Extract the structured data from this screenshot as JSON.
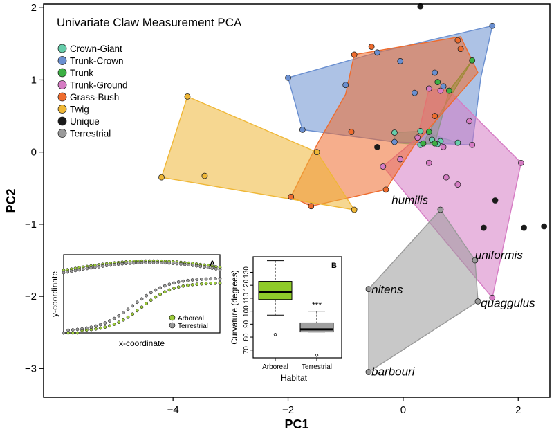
{
  "chart_data": {
    "type": "scatter",
    "title": "Univariate Claw Measurement PCA",
    "xlabel": "PC1",
    "ylabel": "PC2",
    "xlim": [
      -6.25,
      2.55
    ],
    "ylim": [
      -3.4,
      2.05
    ],
    "x_ticks": [
      -4,
      -2,
      0,
      2
    ],
    "y_ticks": [
      -3,
      -2,
      -1,
      0,
      1,
      2
    ],
    "legend_position": "top-left",
    "grid": false,
    "series": [
      {
        "name": "Crown-Giant",
        "color": "#66CDAA",
        "points": [
          [
            -0.15,
            0.27
          ],
          [
            0.95,
            0.13
          ],
          [
            0.3,
            0.1
          ],
          [
            0.5,
            0.17
          ],
          [
            0.65,
            0.15
          ],
          [
            0.3,
            0.29
          ],
          [
            0.6,
            0.11
          ]
        ],
        "hull": [
          [
            -0.15,
            0.27
          ],
          [
            0.3,
            0.29
          ],
          [
            0.95,
            0.13
          ],
          [
            0.3,
            0.1
          ],
          [
            -0.15,
            0.13
          ]
        ]
      },
      {
        "name": "Trunk-Crown",
        "color": "#6A8FD0",
        "points": [
          [
            -2.0,
            1.03
          ],
          [
            -1.75,
            0.31
          ],
          [
            -1.0,
            0.93
          ],
          [
            -0.45,
            1.38
          ],
          [
            -0.05,
            1.26
          ],
          [
            1.55,
            1.75
          ],
          [
            0.55,
            1.1
          ],
          [
            -0.15,
            0.14
          ],
          [
            0.7,
            0.91
          ],
          [
            0.2,
            0.82
          ]
        ],
        "hull": [
          [
            -2.0,
            1.03
          ],
          [
            -0.45,
            1.38
          ],
          [
            1.55,
            1.75
          ],
          [
            1.35,
            1.03
          ],
          [
            1.2,
            0.1
          ],
          [
            -0.15,
            0.14
          ],
          [
            -1.75,
            0.31
          ]
        ]
      },
      {
        "name": "Trunk",
        "color": "#3CB043",
        "points": [
          [
            1.2,
            1.27
          ],
          [
            0.6,
            0.97
          ],
          [
            0.8,
            0.85
          ],
          [
            0.45,
            0.28
          ],
          [
            0.35,
            0.12
          ],
          [
            0.55,
            0.12
          ]
        ],
        "hull": [
          [
            1.2,
            1.27
          ],
          [
            0.8,
            0.85
          ],
          [
            0.55,
            0.12
          ],
          [
            0.35,
            0.12
          ],
          [
            0.45,
            0.28
          ]
        ]
      },
      {
        "name": "Trunk-Ground",
        "color": "#D67CC4",
        "points": [
          [
            0.45,
            0.88
          ],
          [
            0.65,
            0.85
          ],
          [
            1.15,
            0.43
          ],
          [
            1.2,
            0.1
          ],
          [
            0.7,
            0.07
          ],
          [
            0.25,
            0.2
          ],
          [
            -0.35,
            -0.2
          ],
          [
            -0.05,
            -0.1
          ],
          [
            0.45,
            -0.15
          ],
          [
            0.75,
            -0.35
          ],
          [
            0.95,
            -0.45
          ],
          [
            2.05,
            -0.15
          ],
          [
            1.55,
            -2.02
          ]
        ],
        "hull": [
          [
            0.45,
            0.88
          ],
          [
            0.8,
            0.85
          ],
          [
            2.05,
            -0.15
          ],
          [
            1.55,
            -2.02
          ],
          [
            -0.35,
            -0.2
          ],
          [
            0.25,
            0.2
          ]
        ]
      },
      {
        "name": "Grass-Bush",
        "color": "#EE6C2E",
        "points": [
          [
            -0.85,
            1.35
          ],
          [
            0.95,
            1.55
          ],
          [
            1.0,
            1.43
          ],
          [
            -0.55,
            1.46
          ],
          [
            0.55,
            0.5
          ],
          [
            -0.9,
            0.28
          ],
          [
            -1.95,
            -0.62
          ],
          [
            -1.6,
            -0.75
          ],
          [
            -0.3,
            -0.52
          ]
        ],
        "hull": [
          [
            -0.85,
            1.35
          ],
          [
            1.0,
            1.6
          ],
          [
            1.3,
            1.1
          ],
          [
            0.2,
            0.1
          ],
          [
            -0.3,
            -0.52
          ],
          [
            -1.6,
            -0.75
          ],
          [
            -1.95,
            -0.62
          ],
          [
            -1.5,
            0.1
          ],
          [
            -1.0,
            0.8
          ]
        ]
      },
      {
        "name": "Twig",
        "color": "#EFB736",
        "points": [
          [
            -3.75,
            0.77
          ],
          [
            -4.2,
            -0.35
          ],
          [
            -3.45,
            -0.33
          ],
          [
            -1.5,
            0.0
          ],
          [
            -0.85,
            -0.8
          ]
        ],
        "hull": [
          [
            -3.75,
            0.77
          ],
          [
            -1.5,
            0.0
          ],
          [
            -0.85,
            -0.8
          ],
          [
            -4.2,
            -0.35
          ]
        ]
      },
      {
        "name": "Unique",
        "color": "#1A1A1A",
        "points": [
          [
            0.3,
            2.02
          ],
          [
            -0.45,
            0.07
          ],
          [
            1.6,
            -0.67
          ],
          [
            1.4,
            -1.05
          ],
          [
            2.1,
            -1.05
          ],
          [
            2.45,
            -1.03
          ]
        ],
        "hull": null
      },
      {
        "name": "Terrestrial",
        "color": "#9A9A9A",
        "points": [
          [
            0.65,
            -0.8
          ],
          [
            -0.6,
            -1.9
          ],
          [
            1.25,
            -1.5
          ],
          [
            1.3,
            -2.07
          ],
          [
            -0.6,
            -3.05
          ]
        ],
        "hull": [
          [
            0.65,
            -0.8
          ],
          [
            1.25,
            -1.5
          ],
          [
            1.3,
            -2.07
          ],
          [
            -0.6,
            -3.05
          ],
          [
            -0.6,
            -1.9
          ]
        ]
      }
    ],
    "annotations": [
      {
        "text": "humilis",
        "x": -0.2,
        "y": -0.72
      },
      {
        "text": "uniformis",
        "x": 1.25,
        "y": -1.48
      },
      {
        "text": "nitens",
        "x": -0.55,
        "y": -1.96
      },
      {
        "text": "quaggulus",
        "x": 1.35,
        "y": -2.15
      },
      {
        "text": "barbouri",
        "x": -0.55,
        "y": -3.1
      }
    ],
    "insets": [
      {
        "label": "A",
        "type": "scatter",
        "xlabel": "x-coordinate",
        "ylabel": "y-coordinate",
        "legend": [
          "Arboreal",
          "Terrestrial"
        ],
        "legend_colors": [
          "#9CCB3B",
          "#9A9A9A"
        ]
      },
      {
        "label": "B",
        "type": "boxplot",
        "xlabel": "Habitat",
        "ylabel": "Curvature (degrees)",
        "categories": [
          "Arboreal",
          "Terrestrial"
        ],
        "y_ticks": [
          70,
          80,
          90,
          100,
          110,
          120,
          130
        ],
        "ylim": [
          64,
          142
        ],
        "boxes": [
          {
            "name": "Arboreal",
            "color": "#8FCB2A",
            "whisker_low": 97,
            "q1": 109,
            "median": 115,
            "q3": 123,
            "whisker_high": 139,
            "outliers": [
              82
            ]
          },
          {
            "name": "Terrestrial",
            "color": "#A0A0A0",
            "whisker_low": 84,
            "q1": 84,
            "median": 86,
            "q3": 91,
            "whisker_high": 100,
            "outliers": [
              66
            ]
          }
        ],
        "significance": "***"
      }
    ]
  }
}
